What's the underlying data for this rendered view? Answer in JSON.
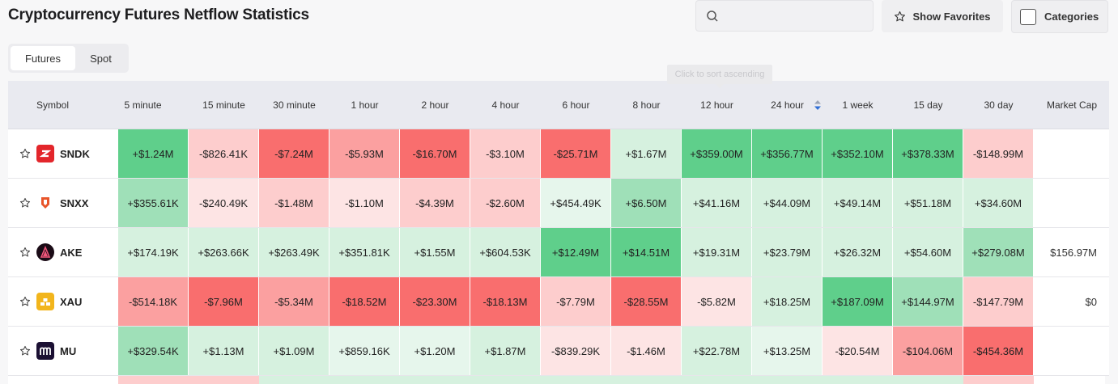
{
  "page": {
    "title": "Cryptocurrency Futures Netflow Statistics"
  },
  "search": {
    "placeholder": ""
  },
  "toolbar": {
    "favorites_label": "Show Favorites",
    "categories_label": "Categories"
  },
  "tabs": [
    {
      "label": "Futures",
      "active": true
    },
    {
      "label": "Spot",
      "active": false
    }
  ],
  "tooltip": {
    "text": "Click to sort ascending"
  },
  "colors": {
    "g3": "#5fcf8b",
    "g2": "#9fe0b8",
    "g1": "#d6f1df",
    "g0": "#e6f6ec",
    "r3": "#f96e6e",
    "r2": "#fba0a0",
    "r1": "#fdcdcd",
    "r0": "#fde4e4",
    "sort_indicator": "#2f6fd6"
  },
  "table": {
    "columns": [
      "Symbol",
      "5 minute",
      "15 minute",
      "30 minute",
      "1 hour",
      "2 hour",
      "4 hour",
      "6 hour",
      "8 hour",
      "12 hour",
      "24 hour",
      "1 week",
      "15 day",
      "30 day",
      "Market Cap"
    ],
    "sort_column": "24 hour",
    "rows": [
      {
        "symbol": "SNDK",
        "icon": "sndk-logo-icon",
        "values": [
          "+$1.24M",
          "-$826.41K",
          "-$7.24M",
          "-$5.93M",
          "-$16.70M",
          "-$3.10M",
          "-$25.71M",
          "+$1.67M",
          "+$359.00M",
          "+$356.77M",
          "+$352.10M",
          "+$378.33M",
          "-$148.99M"
        ],
        "shades": [
          "g3",
          "r1",
          "r3",
          "r2",
          "r3",
          "r1",
          "r3",
          "g1",
          "g3",
          "g3",
          "g3",
          "g3",
          "r1"
        ],
        "market_cap": ""
      },
      {
        "symbol": "SNXX",
        "icon": "snxx-logo-icon",
        "values": [
          "+$355.61K",
          "-$240.49K",
          "-$1.48M",
          "-$1.10M",
          "-$4.39M",
          "-$2.60M",
          "+$454.49K",
          "+$6.50M",
          "+$41.16M",
          "+$44.09M",
          "+$49.14M",
          "+$51.18M",
          "+$34.60M"
        ],
        "shades": [
          "g2",
          "r0",
          "r1",
          "r0",
          "r1",
          "r1",
          "g0",
          "g2",
          "g1",
          "g1",
          "g1",
          "g1",
          "g1"
        ],
        "market_cap": ""
      },
      {
        "symbol": "AKE",
        "icon": "ake-logo-icon",
        "values": [
          "+$174.19K",
          "+$263.66K",
          "+$263.49K",
          "+$351.81K",
          "+$1.55M",
          "+$604.53K",
          "+$12.49M",
          "+$14.51M",
          "+$19.31M",
          "+$23.79M",
          "+$26.32M",
          "+$54.60M",
          "+$279.08M"
        ],
        "shades": [
          "g1",
          "g1",
          "g1",
          "g1",
          "g1",
          "g1",
          "g3",
          "g3",
          "g1",
          "g1",
          "g1",
          "g1",
          "g2"
        ],
        "market_cap": "$156.97M"
      },
      {
        "symbol": "XAU",
        "icon": "xau-logo-icon",
        "values": [
          "-$514.18K",
          "-$7.96M",
          "-$5.34M",
          "-$18.52M",
          "-$23.30M",
          "-$18.13M",
          "-$7.79M",
          "-$28.55M",
          "-$5.82M",
          "+$18.25M",
          "+$187.09M",
          "+$144.97M",
          "-$147.79M"
        ],
        "shades": [
          "r2",
          "r3",
          "r2",
          "r3",
          "r3",
          "r3",
          "r1",
          "r3",
          "r0",
          "g1",
          "g3",
          "g2",
          "r1"
        ],
        "market_cap": "$0"
      },
      {
        "symbol": "MU",
        "icon": "mu-logo-icon",
        "values": [
          "+$329.54K",
          "+$1.13M",
          "+$1.09M",
          "+$859.16K",
          "+$1.20M",
          "+$1.87M",
          "-$839.29K",
          "-$1.46M",
          "+$22.78M",
          "+$13.25M",
          "-$20.54M",
          "-$104.06M",
          "-$454.36M"
        ],
        "shades": [
          "g2",
          "g1",
          "g1",
          "g0",
          "g0",
          "g1",
          "r0",
          "r0",
          "g1",
          "g0",
          "r0",
          "r2",
          "r3"
        ],
        "market_cap": ""
      }
    ]
  }
}
